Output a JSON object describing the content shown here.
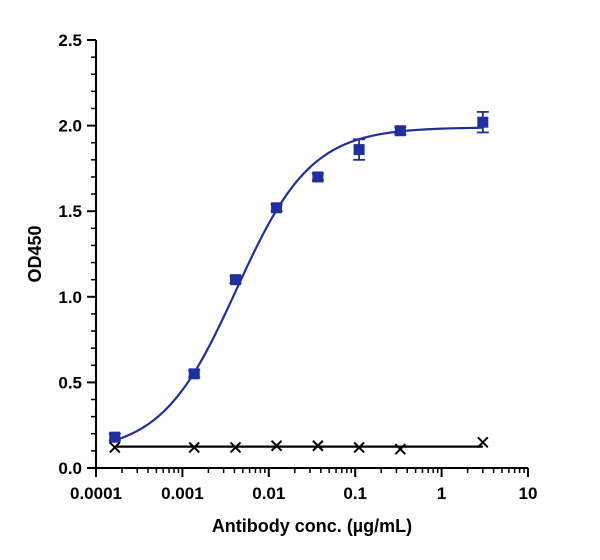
{
  "chart_data": {
    "type": "scatter",
    "title": "",
    "xlabel": "Antibody conc. (µg/mL)",
    "ylabel": "OD450",
    "x_scale": "log",
    "xlim": [
      0.0001,
      10
    ],
    "ylim": [
      0,
      2.5
    ],
    "x_ticks": [
      {
        "value": 0.0001,
        "label": "0.0001"
      },
      {
        "value": 0.001,
        "label": "0.001"
      },
      {
        "value": 0.01,
        "label": "0.01"
      },
      {
        "value": 0.1,
        "label": "0.1"
      },
      {
        "value": 1,
        "label": "1"
      },
      {
        "value": 10,
        "label": "10"
      }
    ],
    "y_ticks": [
      {
        "value": 0,
        "label": "0.0"
      },
      {
        "value": 0.5,
        "label": "0.5"
      },
      {
        "value": 1.0,
        "label": "1.0"
      },
      {
        "value": 1.5,
        "label": "1.5"
      },
      {
        "value": 2.0,
        "label": "2.0"
      },
      {
        "value": 2.5,
        "label": "2.5"
      }
    ],
    "grid": false,
    "legend": "none",
    "series": [
      {
        "marker": "square",
        "color": "#1f2f9c",
        "fit": "4PL sigmoid",
        "x": [
          0.000165,
          0.00137,
          0.00412,
          0.0123,
          0.037,
          0.111,
          0.333,
          3.0
        ],
        "y": [
          0.18,
          0.55,
          1.1,
          1.52,
          1.7,
          1.86,
          1.97,
          2.02
        ],
        "error": [
          0.02,
          0.02,
          0.02,
          0.02,
          0.02,
          0.06,
          0.02,
          0.06
        ]
      },
      {
        "marker": "x",
        "color": "#000000",
        "fit": "flat",
        "x": [
          0.000165,
          0.00137,
          0.00412,
          0.0123,
          0.037,
          0.111,
          0.333,
          3.0
        ],
        "y": [
          0.12,
          0.12,
          0.12,
          0.13,
          0.13,
          0.12,
          0.11,
          0.15
        ],
        "error": [
          0,
          0,
          0,
          0,
          0,
          0,
          0,
          0
        ]
      }
    ],
    "fit_params": [
      {
        "bottom": 0.09,
        "top": 1.99,
        "ec50": 0.0042,
        "hill": 1.0
      },
      {
        "bottom": 0.125,
        "top": 0.125,
        "ec50": 0.01,
        "hill": 1.0
      }
    ]
  }
}
